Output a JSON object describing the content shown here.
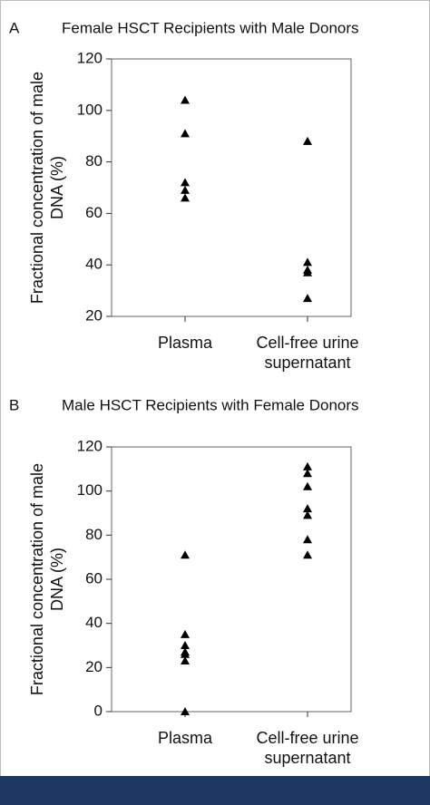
{
  "chart_data": [
    {
      "type": "strip",
      "panel": "A",
      "title": "Female HSCT Recipients with Male Donors",
      "ylabel": "Fractional concentration of male DNA (%)",
      "categories": [
        "Plasma",
        "Cell-free urine supernatant"
      ],
      "values": [
        [
          104,
          91,
          72,
          69,
          66
        ],
        [
          88,
          41,
          38,
          37,
          27
        ]
      ],
      "color": "#000000",
      "ylim": [
        20,
        120
      ],
      "yticks": [
        20,
        40,
        60,
        80,
        100,
        120
      ]
    },
    {
      "type": "strip",
      "panel": "B",
      "title": "Male HSCT Recipients with Female Donors",
      "ylabel": "Fractional concentration of male DNA (%)",
      "categories": [
        "Plasma",
        "Cell-free urine supernatant"
      ],
      "values": [
        [
          71,
          35,
          30,
          27,
          26,
          23,
          0
        ],
        [
          111,
          108,
          102,
          92,
          89,
          78,
          71
        ]
      ],
      "color": "#000000",
      "ylim": [
        0,
        120
      ],
      "yticks": [
        0,
        20,
        40,
        60,
        80,
        100,
        120
      ]
    }
  ]
}
